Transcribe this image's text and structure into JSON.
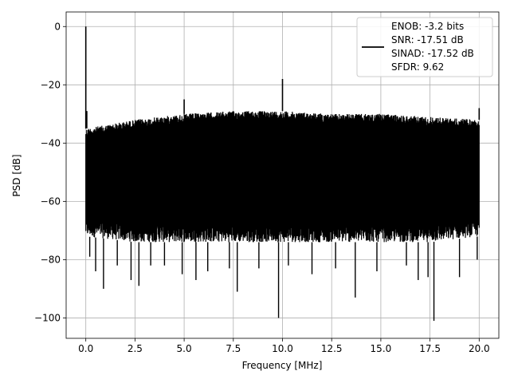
{
  "chart_data": {
    "type": "line",
    "title": "",
    "xlabel": "Frequency [MHz]",
    "ylabel": "PSD [dB]",
    "xlim": [
      -1.0,
      21.0
    ],
    "ylim": [
      -107,
      5
    ],
    "x_ticks": [
      0.0,
      2.5,
      5.0,
      7.5,
      10.0,
      12.5,
      15.0,
      17.5,
      20.0
    ],
    "x_tick_labels": [
      "0.0",
      "2.5",
      "5.0",
      "7.5",
      "10.0",
      "12.5",
      "15.0",
      "17.5",
      "20.0"
    ],
    "y_ticks": [
      0,
      -20,
      -40,
      -60,
      -80,
      -100
    ],
    "y_tick_labels": [
      "0",
      "−20",
      "−40",
      "−60",
      "−80",
      "−100"
    ],
    "grid": true,
    "legend_position": "top-right",
    "line_color": "#000000",
    "legend": {
      "line1": "ENOB: -3.2 bits",
      "line2": "SNR: -17.51 dB",
      "line3": "SINAD: -17.52 dB",
      "line4": "SFDR: 9.62"
    },
    "series": [
      {
        "noise_floor_top": [
          {
            "x": 0.0,
            "y": -35
          },
          {
            "x": 2.5,
            "y": -32
          },
          {
            "x": 5.0,
            "y": -30
          },
          {
            "x": 7.5,
            "y": -29
          },
          {
            "x": 10.0,
            "y": -29
          },
          {
            "x": 12.5,
            "y": -30
          },
          {
            "x": 15.0,
            "y": -30
          },
          {
            "x": 17.5,
            "y": -31
          },
          {
            "x": 20.0,
            "y": -32
          }
        ],
        "noise_floor_bottom": [
          {
            "x": 0.0,
            "y": -72
          },
          {
            "x": 2.5,
            "y": -74
          },
          {
            "x": 5.0,
            "y": -74
          },
          {
            "x": 7.5,
            "y": -74
          },
          {
            "x": 10.0,
            "y": -74
          },
          {
            "x": 12.5,
            "y": -74
          },
          {
            "x": 15.0,
            "y": -74
          },
          {
            "x": 17.5,
            "y": -74
          },
          {
            "x": 20.0,
            "y": -72
          }
        ],
        "peaks": [
          {
            "x": 0.0,
            "y": 0
          },
          {
            "x": 0.05,
            "y": -29
          },
          {
            "x": 5.0,
            "y": -25
          },
          {
            "x": 10.0,
            "y": -18
          },
          {
            "x": 20.0,
            "y": -28
          }
        ],
        "dips": [
          {
            "x": 0.2,
            "y": -79
          },
          {
            "x": 0.5,
            "y": -84
          },
          {
            "x": 0.9,
            "y": -90
          },
          {
            "x": 1.6,
            "y": -82
          },
          {
            "x": 2.3,
            "y": -87
          },
          {
            "x": 2.7,
            "y": -89
          },
          {
            "x": 3.3,
            "y": -82
          },
          {
            "x": 4.0,
            "y": -82
          },
          {
            "x": 4.9,
            "y": -85
          },
          {
            "x": 5.6,
            "y": -87
          },
          {
            "x": 6.2,
            "y": -84
          },
          {
            "x": 7.3,
            "y": -83
          },
          {
            "x": 7.7,
            "y": -91
          },
          {
            "x": 8.8,
            "y": -83
          },
          {
            "x": 9.8,
            "y": -100
          },
          {
            "x": 10.3,
            "y": -82
          },
          {
            "x": 11.5,
            "y": -85
          },
          {
            "x": 12.7,
            "y": -83
          },
          {
            "x": 13.7,
            "y": -93
          },
          {
            "x": 14.8,
            "y": -84
          },
          {
            "x": 16.3,
            "y": -82
          },
          {
            "x": 16.9,
            "y": -87
          },
          {
            "x": 17.4,
            "y": -86
          },
          {
            "x": 17.7,
            "y": -101
          },
          {
            "x": 19.0,
            "y": -86
          },
          {
            "x": 19.9,
            "y": -80
          }
        ]
      }
    ]
  }
}
